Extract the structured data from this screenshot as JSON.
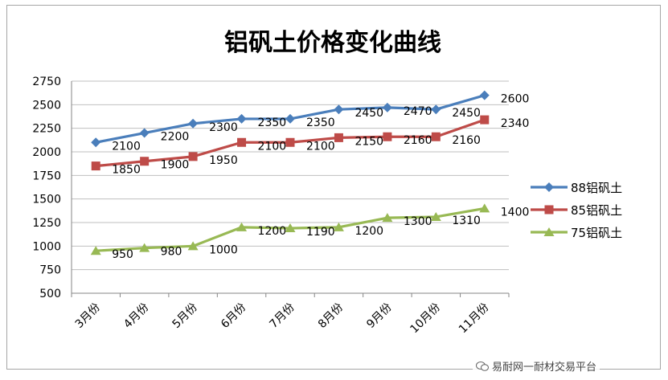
{
  "chart_data": {
    "type": "line",
    "title": "铝矾土价格变化曲线",
    "xlabel": "",
    "ylabel": "",
    "categories": [
      "3月份",
      "4月份",
      "5月份",
      "6月份",
      "7月份",
      "8月份",
      "9月份",
      "10月份",
      "11月份"
    ],
    "ylim": [
      500,
      2750
    ],
    "yticks": [
      500,
      750,
      1000,
      1250,
      1500,
      1750,
      2000,
      2250,
      2500,
      2750
    ],
    "grid": true,
    "legend_position": "right",
    "series": [
      {
        "name": "88铝矾土",
        "color": "#4a7ebb",
        "marker": "diamond",
        "values": [
          2100,
          2200,
          2300,
          2350,
          2350,
          2450,
          2470,
          2450,
          2600
        ]
      },
      {
        "name": "85铝矾土",
        "color": "#be4b48",
        "marker": "square",
        "values": [
          1850,
          1900,
          1950,
          2100,
          2100,
          2150,
          2160,
          2160,
          2340
        ]
      },
      {
        "name": "75铝矾土",
        "color": "#98b954",
        "marker": "triangle",
        "values": [
          950,
          980,
          1000,
          1200,
          1190,
          1200,
          1300,
          1310,
          1400
        ]
      }
    ]
  },
  "watermark": {
    "text": "易耐网一耐材交易平台",
    "icon": "wechat-icon"
  }
}
